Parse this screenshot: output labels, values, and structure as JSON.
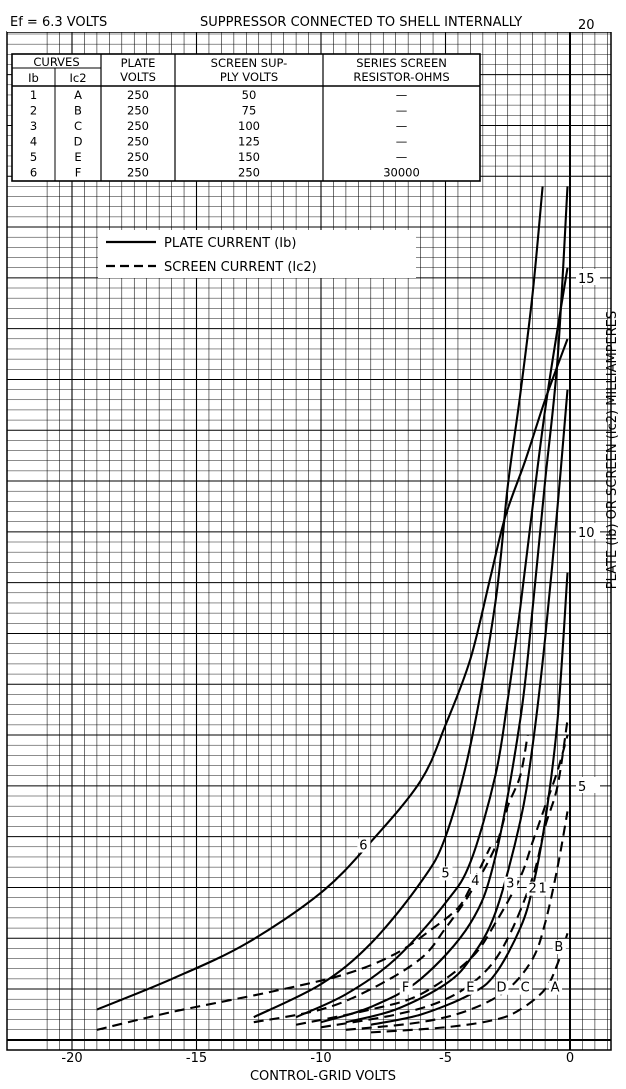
{
  "chart_data": {
    "type": "line",
    "header_left": "Ef = 6.3 VOLTS",
    "header_right": "SUPPRESSOR CONNECTED TO SHELL INTERNALLY",
    "xlabel": "CONTROL-GRID VOLTS",
    "ylabel": "PLATE (Ib) OR SCREEN (Ic2) MILLIAMPERES",
    "xlim": [
      -20,
      0
    ],
    "ylim": [
      0,
      20
    ],
    "grid": true,
    "xticks": [
      "-20",
      "-15",
      "-10",
      "-5",
      "0"
    ],
    "yticks": [
      "5",
      "10",
      "15",
      "20"
    ],
    "legend": {
      "position": "top-left",
      "entries": [
        {
          "label": "PLATE CURRENT (Ib)",
          "style": "solid"
        },
        {
          "label": "SCREEN CURRENT (Ic2)",
          "style": "dashed"
        }
      ]
    },
    "table": {
      "headers": [
        "CURVES",
        "PLATE VOLTS",
        "SCREEN SUPPLY VOLTS",
        "SERIES SCREEN RESISTOR-OHMS"
      ],
      "subheaders": [
        "Ib",
        "Ic2"
      ],
      "rows": [
        [
          "1",
          "A",
          "250",
          "50",
          "—"
        ],
        [
          "2",
          "B",
          "250",
          "75",
          "—"
        ],
        [
          "3",
          "C",
          "250",
          "100",
          "—"
        ],
        [
          "4",
          "D",
          "250",
          "125",
          "—"
        ],
        [
          "5",
          "E",
          "250",
          "150",
          "—"
        ],
        [
          "6",
          "F",
          "250",
          "250",
          "30000"
        ]
      ]
    },
    "series": [
      {
        "name": "1",
        "style": "solid",
        "label_at": [
          -1.1,
          2.9
        ],
        "x": [
          -8,
          -6,
          -4,
          -3,
          -2,
          -1.5,
          -1,
          -0.5,
          -0.1
        ],
        "y": [
          0.3,
          0.5,
          0.9,
          1.3,
          2.2,
          3.0,
          4.3,
          6.3,
          9.2
        ]
      },
      {
        "name": "2",
        "style": "solid",
        "label_at": [
          -1.5,
          2.9
        ],
        "x": [
          -9,
          -7,
          -5,
          -4,
          -3,
          -2,
          -1.5,
          -1,
          -0.5,
          -0.1
        ],
        "y": [
          0.35,
          0.6,
          1.1,
          1.6,
          2.5,
          4.3,
          5.8,
          7.9,
          10.5,
          12.8
        ]
      },
      {
        "name": "3",
        "style": "solid",
        "label_at": [
          -2.4,
          3.0
        ],
        "x": [
          -10,
          -8,
          -6,
          -4,
          -3,
          -2,
          -1.5,
          -1,
          -0.5,
          -0.1
        ],
        "y": [
          0.35,
          0.65,
          1.2,
          2.3,
          3.6,
          6.3,
          8.5,
          11.0,
          13.4,
          16.8
        ]
      },
      {
        "name": "4",
        "style": "solid",
        "label_at": [
          -3.8,
          3.05
        ],
        "x": [
          -11,
          -9,
          -7,
          -5,
          -4,
          -3,
          -2.5,
          -2,
          -1.5,
          -1,
          -0.5,
          -0.1
        ],
        "y": [
          0.45,
          0.9,
          1.6,
          2.7,
          3.5,
          5.2,
          6.7,
          8.5,
          10.5,
          12.4,
          14.0,
          15.2
        ]
      },
      {
        "name": "5",
        "style": "solid",
        "label_at": [
          -5.0,
          3.2
        ],
        "x": [
          -12.7,
          -10,
          -8,
          -6,
          -5,
          -4,
          -3,
          -2.5,
          -2,
          -1.5,
          -1.1
        ],
        "y": [
          0.45,
          1.1,
          1.9,
          3.1,
          4.0,
          5.8,
          8.6,
          10.9,
          12.7,
          14.7,
          16.8
        ]
      },
      {
        "name": "6",
        "style": "solid",
        "label_at": [
          -8.3,
          3.75
        ],
        "x": [
          -19,
          -16,
          -13,
          -10,
          -8,
          -6,
          -5,
          -4,
          -3.2,
          -2.6,
          -1.8,
          -1,
          -0.1
        ],
        "y": [
          0.6,
          1.2,
          1.9,
          2.9,
          3.9,
          5.1,
          6.2,
          7.5,
          9.1,
          10.3,
          11.4,
          12.6,
          13.8
        ]
      },
      {
        "name": "A",
        "style": "dashed",
        "label_at": [
          -0.6,
          0.95
        ],
        "x": [
          -8,
          -5,
          -3,
          -2,
          -1,
          -0.5,
          -0.1
        ],
        "y": [
          0.15,
          0.25,
          0.4,
          0.6,
          1.0,
          1.5,
          2.1
        ]
      },
      {
        "name": "B",
        "style": "dashed",
        "label_at": [
          -0.45,
          1.75
        ],
        "x": [
          -9,
          -6,
          -4,
          -2.5,
          -1.5,
          -1,
          -0.5,
          -0.1
        ],
        "y": [
          0.2,
          0.35,
          0.6,
          1.0,
          1.6,
          2.3,
          3.4,
          4.5
        ]
      },
      {
        "name": "C",
        "style": "dashed",
        "label_at": [
          -1.8,
          0.95
        ],
        "x": [
          -10,
          -7,
          -5,
          -3.5,
          -2.5,
          -1.5,
          -1,
          -0.5,
          -0.1
        ],
        "y": [
          0.25,
          0.5,
          0.8,
          1.3,
          2.0,
          3.2,
          4.2,
          5.0,
          6.3
        ]
      },
      {
        "name": "D",
        "style": "dashed",
        "label_at": [
          -2.75,
          0.95
        ],
        "x": [
          -11,
          -8,
          -6,
          -4,
          -3,
          -2,
          -1.5,
          -1,
          -0.5,
          -0.1
        ],
        "y": [
          0.3,
          0.6,
          0.9,
          1.6,
          2.3,
          3.2,
          3.9,
          4.6,
          5.3,
          6.0
        ]
      },
      {
        "name": "E",
        "style": "dashed",
        "label_at": [
          -4.0,
          0.95
        ],
        "x": [
          -12.7,
          -10,
          -8,
          -6,
          -5,
          -4,
          -3,
          -2.5,
          -2,
          -1.7
        ],
        "y": [
          0.35,
          0.6,
          1.0,
          1.6,
          2.2,
          2.9,
          3.8,
          4.6,
          5.2,
          6.0
        ]
      },
      {
        "name": "F",
        "style": "dashed",
        "label_at": [
          -6.6,
          0.95
        ],
        "x": [
          -19,
          -16,
          -12,
          -9,
          -7,
          -5.5,
          -4.5,
          -4,
          -3.2
        ],
        "y": [
          0.2,
          0.55,
          0.95,
          1.3,
          1.7,
          2.2,
          2.6,
          3.0,
          3.8
        ]
      }
    ]
  }
}
